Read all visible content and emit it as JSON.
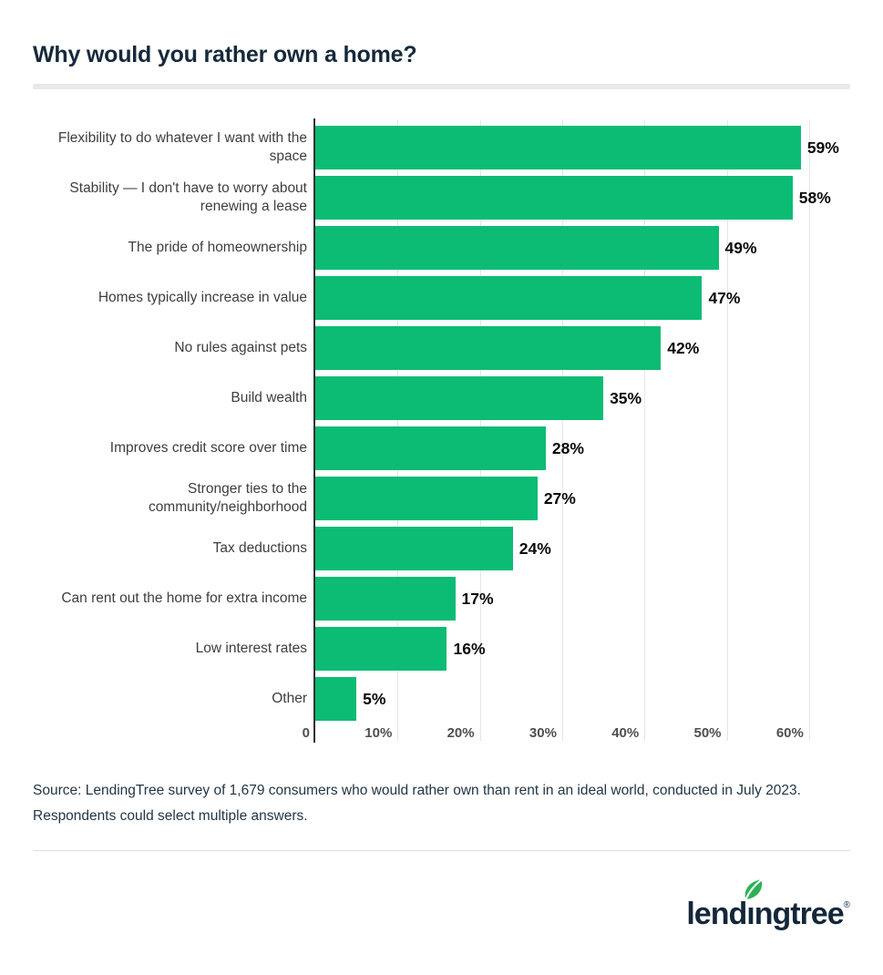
{
  "header": {
    "title": "Why would you rather own a home?"
  },
  "chart_data": {
    "type": "bar",
    "orientation": "horizontal",
    "title": "Why would you rather own a home?",
    "categories": [
      "Flexibility to do whatever I want with the space",
      "Stability — I don't have to worry about renewing a lease",
      "The pride of homeownership",
      "Homes typically increase in value",
      "No rules against pets",
      "Build wealth",
      "Improves credit score over time",
      "Stronger ties to the community/neighborhood",
      "Tax deductions",
      "Can rent out the home for extra income",
      "Low interest rates",
      "Other"
    ],
    "values": [
      59,
      58,
      49,
      47,
      42,
      35,
      28,
      27,
      24,
      17,
      16,
      5
    ],
    "value_labels": [
      "59%",
      "58%",
      "49%",
      "47%",
      "42%",
      "35%",
      "28%",
      "27%",
      "24%",
      "17%",
      "16%",
      "5%"
    ],
    "xlabel": "",
    "ylabel": "",
    "xlim": [
      0,
      65
    ],
    "x_ticks": [
      {
        "value": 0,
        "label": "0"
      },
      {
        "value": 10,
        "label": "10%"
      },
      {
        "value": 20,
        "label": "20%"
      },
      {
        "value": 30,
        "label": "30%"
      },
      {
        "value": 40,
        "label": "40%"
      },
      {
        "value": 50,
        "label": "50%"
      },
      {
        "value": 60,
        "label": "60%"
      }
    ],
    "grid": true,
    "legend_position": "none",
    "bar_color": "#0DBC74",
    "gridline_color": "#E5E5E5",
    "axis_line_color": "#2F2F2F"
  },
  "source": {
    "text": "Source: LendingTree survey of 1,679 consumers who would rather own than rent in an ideal world, conducted in July 2023. Respondents could select multiple answers."
  },
  "footer": {
    "logo": {
      "text": "lendingtree",
      "part1": "lend",
      "dotless_i": "ı",
      "part2": "ngtree",
      "registered": "®",
      "leaf_color": "#2DB157",
      "text_color": "#14273A"
    }
  },
  "colors": {
    "title_navy": "#16293C",
    "category_label": "#3E3E3E",
    "value_label": "#0A0A0A",
    "tick_label": "#4F4F4F",
    "divider_thick": "#E9E9E9",
    "divider_thin": "#DCDCDC",
    "background": "#FFFFFF"
  }
}
